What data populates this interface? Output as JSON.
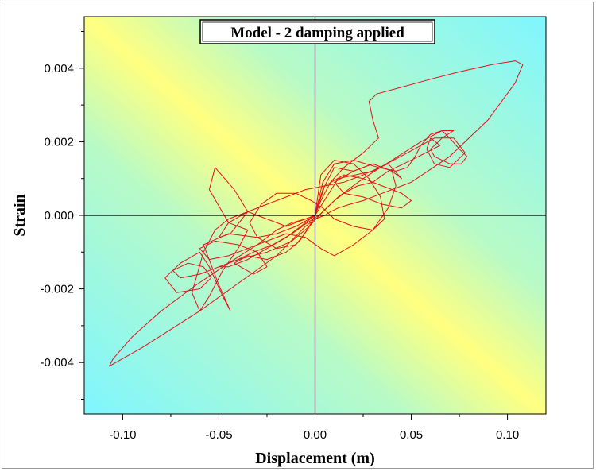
{
  "chart_data": {
    "type": "line",
    "title": "Model - 2 damping applied",
    "xlabel": "Displacement (m)",
    "ylabel": "Strain",
    "xlim": [
      -0.12,
      0.12
    ],
    "ylim": [
      -0.0054,
      0.0054
    ],
    "x_ticks": [
      "-0.10",
      "-0.05",
      "0.00",
      "0.05",
      "0.10"
    ],
    "x_tick_values": [
      -0.1,
      -0.05,
      0.0,
      0.05,
      0.1
    ],
    "y_ticks": [
      "-0.004",
      "-0.002",
      "0.000",
      "0.002",
      "0.004"
    ],
    "y_tick_values": [
      -0.004,
      -0.002,
      0.0,
      0.002,
      0.004
    ],
    "background": "diagonal gradient yellow to cyan",
    "zero_lines": true,
    "grid": false,
    "series": [
      {
        "color": "#e8101a",
        "x": [
          0.0,
          0.003,
          0.008,
          0.015,
          0.025,
          0.033,
          0.03,
          0.028,
          0.032,
          0.046,
          0.06,
          0.075,
          0.092,
          0.104,
          0.108,
          0.104,
          0.09,
          0.07,
          0.05,
          0.035,
          0.025,
          0.018,
          0.012,
          0.008,
          0.005,
          0.0,
          -0.005,
          -0.02,
          -0.06,
          -0.09,
          -0.107,
          -0.105,
          -0.095,
          -0.08,
          -0.062,
          -0.045,
          -0.03,
          -0.02,
          -0.012,
          -0.005,
          0.0
        ],
        "y": [
          0.0,
          0.0004,
          0.0009,
          0.0013,
          0.0017,
          0.0021,
          0.0026,
          0.0031,
          0.0033,
          0.0035,
          0.0037,
          0.0039,
          0.0041,
          0.0042,
          0.0041,
          0.0036,
          0.0026,
          0.0016,
          0.0009,
          0.0006,
          0.0004,
          0.0003,
          0.0002,
          0.0001,
          0.0,
          -0.0001,
          -0.0003,
          -0.0011,
          -0.0026,
          -0.0036,
          -0.0041,
          -0.0039,
          -0.0033,
          -0.0026,
          -0.0019,
          -0.0013,
          -0.0008,
          -0.0004,
          -0.0002,
          -0.0001,
          0.0
        ]
      },
      {
        "color": "#e8101a",
        "x": [
          0.0,
          0.006,
          0.012,
          0.03,
          0.048,
          0.062,
          0.072,
          0.078,
          0.07,
          0.062,
          0.058,
          0.06,
          0.065,
          0.05,
          0.038,
          0.03,
          0.022,
          0.015,
          0.01,
          0.006,
          0.002,
          -0.004,
          -0.012,
          -0.022,
          -0.032,
          -0.04,
          -0.05,
          -0.06,
          -0.07,
          -0.074,
          -0.066,
          -0.058,
          -0.054,
          -0.06,
          -0.072,
          -0.078,
          -0.07,
          -0.06,
          -0.055,
          -0.048,
          -0.044,
          -0.05,
          -0.058,
          -0.045,
          -0.03,
          -0.02,
          -0.01,
          -0.003,
          0.0
        ],
        "y": [
          0.0,
          0.0005,
          0.001,
          0.0012,
          0.0017,
          0.0021,
          0.0021,
          0.0017,
          0.0013,
          0.0014,
          0.0018,
          0.0021,
          0.0019,
          0.0015,
          0.0012,
          0.0009,
          0.0008,
          0.0006,
          0.0004,
          0.0002,
          0.0,
          -0.0002,
          -0.0005,
          -0.0008,
          -0.001,
          -0.0012,
          -0.0014,
          -0.0016,
          -0.0017,
          -0.0015,
          -0.0013,
          -0.0014,
          -0.0017,
          -0.002,
          -0.0021,
          -0.0017,
          -0.0013,
          -0.001,
          -0.0014,
          -0.0022,
          -0.0026,
          -0.0019,
          -0.0008,
          -0.0005,
          -0.0006,
          -0.0005,
          -0.0003,
          -0.0001,
          0.0
        ]
      },
      {
        "color": "#e8101a",
        "x": [
          0.0,
          0.004,
          0.01,
          0.02,
          0.03,
          0.04,
          0.045,
          0.038,
          0.025,
          0.015,
          0.005,
          -0.005,
          -0.015,
          -0.025,
          -0.035,
          -0.045,
          -0.05,
          -0.044,
          -0.035,
          -0.042,
          -0.052,
          -0.055,
          -0.045,
          -0.035,
          -0.04,
          -0.048,
          -0.055,
          -0.06,
          -0.064,
          -0.058,
          -0.052,
          -0.045,
          -0.035,
          -0.025,
          -0.015,
          -0.005,
          0.0
        ],
        "y": [
          0.0,
          0.0007,
          0.0013,
          0.0012,
          0.0014,
          0.0012,
          0.001,
          0.0014,
          0.0011,
          0.0009,
          0.0008,
          0.0007,
          0.0005,
          0.0003,
          0.0001,
          -0.0002,
          -0.0006,
          -0.0005,
          0.0001,
          0.0007,
          0.0013,
          0.0007,
          -0.0002,
          -0.0004,
          -0.0009,
          -0.0015,
          -0.0022,
          -0.0026,
          -0.0021,
          -0.001,
          -0.0004,
          -0.0001,
          0.0001,
          -0.0001,
          -0.0003,
          -0.0001,
          0.0
        ]
      },
      {
        "color": "#e8101a",
        "x": [
          0.0,
          0.005,
          0.015,
          0.025,
          0.035,
          0.045,
          0.05,
          0.045,
          0.035,
          0.025,
          0.015,
          0.01,
          0.02,
          0.03,
          0.04,
          0.042,
          0.038,
          0.03,
          0.02,
          0.01,
          0.003,
          -0.005,
          -0.015,
          -0.025,
          -0.035,
          -0.045,
          -0.055,
          -0.06,
          -0.052,
          -0.04,
          -0.03,
          -0.025,
          -0.032,
          -0.042,
          -0.035,
          -0.025,
          -0.015,
          -0.008,
          -0.003,
          0.0
        ],
        "y": [
          0.0,
          0.0008,
          0.0011,
          0.001,
          0.0008,
          0.0006,
          0.0004,
          0.0002,
          0.0003,
          0.0005,
          0.0006,
          0.0009,
          0.0012,
          0.0014,
          0.0012,
          0.0008,
          0.0002,
          -0.0004,
          -0.0008,
          -0.0011,
          -0.0009,
          -0.0006,
          -0.0005,
          -0.0007,
          -0.0009,
          -0.0011,
          -0.0012,
          -0.0009,
          -0.0007,
          -0.0008,
          -0.001,
          -0.0014,
          -0.0016,
          -0.0013,
          -0.0011,
          -0.0012,
          -0.001,
          -0.0007,
          -0.0003,
          0.0
        ]
      },
      {
        "color": "#e8101a",
        "x": [
          0.0,
          0.004,
          0.01,
          0.02,
          0.033,
          0.042,
          0.048,
          0.052,
          0.055,
          0.06,
          0.066,
          0.07,
          0.075,
          0.079,
          0.076,
          0.07,
          0.062,
          0.06,
          0.066,
          0.072,
          0.066,
          0.055,
          0.04,
          0.025,
          0.012,
          0.004,
          -0.003,
          -0.012,
          -0.025,
          -0.04,
          -0.05,
          -0.045,
          -0.035,
          -0.025,
          -0.015,
          -0.005,
          0.0
        ],
        "y": [
          0.0,
          0.0009,
          0.0014,
          0.0015,
          0.0013,
          0.0012,
          0.0013,
          0.0016,
          0.0019,
          0.0022,
          0.0023,
          0.0021,
          0.0018,
          0.0016,
          0.0014,
          0.0014,
          0.0016,
          0.0018,
          0.0021,
          0.0023,
          0.0023,
          0.002,
          0.0015,
          0.001,
          0.0005,
          0.0001,
          -0.0003,
          -0.0007,
          -0.001,
          -0.0012,
          -0.0014,
          -0.0014,
          -0.0012,
          -0.0009,
          -0.0006,
          -0.0002,
          0.0
        ]
      },
      {
        "color": "#e8101a",
        "x": [
          0.0,
          0.003,
          0.01,
          0.02,
          0.028,
          0.034,
          0.036,
          0.03,
          0.02,
          0.01,
          0.004,
          -0.002,
          -0.01,
          -0.02,
          -0.028,
          -0.034,
          -0.03,
          -0.02,
          -0.01,
          -0.004,
          0.0
        ],
        "y": [
          0.0,
          0.0011,
          0.0015,
          0.0014,
          0.001,
          0.0005,
          -0.0001,
          -0.0004,
          -0.0003,
          -0.0001,
          0.0002,
          0.0004,
          0.0006,
          0.0006,
          0.0003,
          -0.0002,
          -0.0006,
          -0.0009,
          -0.0008,
          -0.0004,
          0.0
        ]
      }
    ]
  }
}
